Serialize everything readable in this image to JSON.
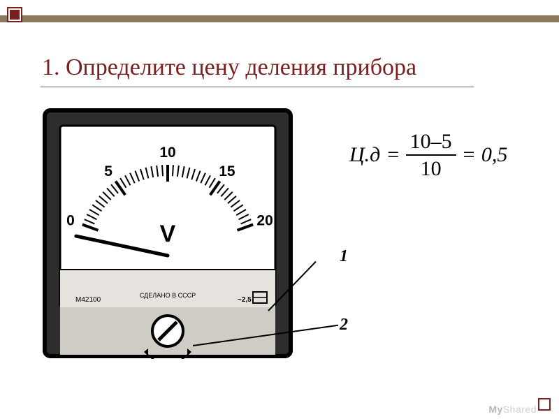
{
  "slide": {
    "title": "1. Определите цену деления прибора",
    "accent_color": "#7a1f1f",
    "stripe_color": "#8a795d",
    "background_color": "#ffffff"
  },
  "voltmeter": {
    "type": "analog-meter",
    "unit_symbol": "V",
    "model": "M42100",
    "made_label": "СДЕЛАНО В СССР",
    "accuracy_marking": "~2,5",
    "face_color": "#ffffff",
    "bezel_color": "#2d2d2d",
    "lower_panel_color": "#e6e3de",
    "tick_color": "#000000",
    "needle_angle_deg": 168,
    "scale": {
      "min": 0,
      "max": 20,
      "major_step": 5,
      "minor_per_major": 10,
      "major_values": [
        0,
        5,
        10,
        15,
        20
      ],
      "major_labels": [
        "0",
        "5",
        "10",
        "15",
        "20"
      ],
      "start_angle_deg": 160,
      "end_angle_deg": 20,
      "radius_outer": 130,
      "radius_major_inner": 106,
      "radius_minor_inner": 114,
      "label_radius": 148,
      "major_label_fontsize": 21,
      "major_label_bold": true
    }
  },
  "callouts": {
    "label_1": "1",
    "label_2": "2"
  },
  "formula": {
    "lhs": "Ц.д",
    "numerator": "10–5",
    "denominator": "10",
    "rhs": "0,5"
  },
  "watermark": {
    "brand_bold": "My",
    "brand_rest": "Shared"
  }
}
